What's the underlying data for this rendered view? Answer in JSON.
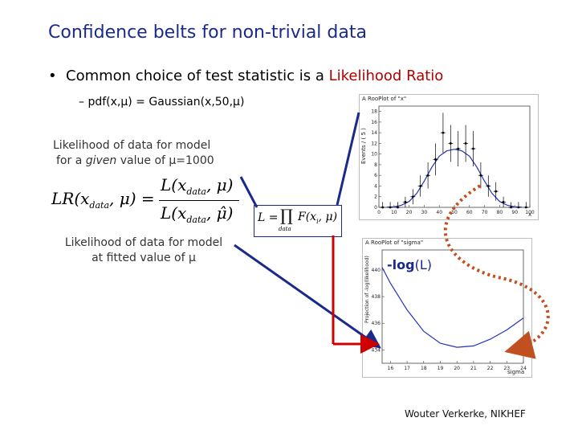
{
  "slide": {
    "title": "Confidence belts for non-trivial data",
    "bullet": {
      "prefix": "Common choice of test statistic is a ",
      "highlight": "Likelihood Ratio"
    },
    "sub_bullet": "– pdf(x,μ) = Gaussian(x,50,μ)",
    "note_given": {
      "line1": "Likelihood of data for model",
      "line2_pre": "for a ",
      "line2_em": "given",
      "line2_post": " value of μ=1000"
    },
    "note_fitted": {
      "line1": "Likelihood of data for model",
      "line2": "at fitted value of μ"
    },
    "nll_label": {
      "bold": "-log",
      "rest": "(L)"
    },
    "footer": "Wouter Verkerke, NIKHEF"
  },
  "formula_lr": {
    "lhs": "LR(x",
    "lhs_sub": "data",
    "lhs_tail": ", μ) =",
    "num": "L(x",
    "num_sub": "data",
    "num_tail": ", μ)",
    "den": "L(x",
    "den_sub": "data",
    "den_tail": ", μ̂)"
  },
  "formula_l": {
    "lhs": "L =",
    "prod": "∏",
    "prod_sub": "data",
    "body": "F(x",
    "body_sub": "i",
    "body_tail": ", μ)"
  },
  "colors": {
    "title": "#1a2a8c",
    "highlight": "#b00000",
    "arrow_blue": "#1a2a8c",
    "arrow_red": "#d00000",
    "arrow_dotted": "#c05020",
    "curve": "#2233bb"
  },
  "plot_top": {
    "title": "A RooPlot of \"x\"",
    "ylabel": "Events / ( 5 )",
    "y_ticks": [
      "18",
      "16",
      "14",
      "12",
      "10",
      "8",
      "6",
      "4",
      "2",
      "0"
    ],
    "x_ticks": [
      "0",
      "10",
      "20",
      "30",
      "40",
      "50",
      "60",
      "70",
      "80",
      "90",
      "100"
    ],
    "x_unit": "x"
  },
  "plot_bottom": {
    "title": "A RooPlot of \"sigma\"",
    "ylabel": "Projection of -log(likelihood)",
    "y_ticks": [
      "440",
      "438",
      "436",
      "434"
    ],
    "x_ticks": [
      "16",
      "17",
      "18",
      "19",
      "20",
      "21",
      "22",
      "23",
      "24"
    ],
    "x_unit": "sigma"
  },
  "chart_data": [
    {
      "type": "scatter",
      "title": "A RooPlot of \"x\"",
      "xlabel": "x",
      "ylabel": "Events / ( 5 )",
      "xlim": [
        0,
        100
      ],
      "ylim": [
        0,
        19
      ],
      "series": [
        {
          "x": [
            2.5,
            7.5,
            12.5,
            17.5,
            22.5,
            27.5,
            32.5,
            37.5,
            42.5,
            47.5,
            52.5,
            57.5,
            62.5,
            67.5,
            72.5,
            77.5,
            82.5,
            87.5,
            92.5,
            97.5
          ],
          "y": [
            0,
            0,
            0,
            1,
            2,
            4,
            6,
            9,
            14,
            12,
            11,
            12,
            11,
            6,
            4,
            3,
            1,
            0,
            0,
            0
          ]
        },
        {
          "x": [
            5,
            10,
            15,
            20,
            25,
            30,
            35,
            40,
            45,
            50,
            55,
            60,
            65,
            70,
            75,
            80,
            85,
            90,
            95
          ],
          "y": [
            0.02,
            0.1,
            0.4,
            1.1,
            2.6,
            4.9,
            7.5,
            9.6,
            10.6,
            10.9,
            10.6,
            9.6,
            7.5,
            4.9,
            2.6,
            1.1,
            0.4,
            0.1,
            0.02
          ]
        }
      ]
    },
    {
      "type": "line",
      "title": "A RooPlot of \"sigma\"",
      "xlabel": "sigma",
      "ylabel": "Projection of -log(likelihood)",
      "xlim": [
        15.5,
        24
      ],
      "ylim": [
        433,
        441.5
      ],
      "series": [
        {
          "x": [
            15.5,
            16,
            17,
            18,
            19,
            20,
            21,
            22,
            23,
            24
          ],
          "y": [
            440.2,
            439.0,
            437.0,
            435.4,
            434.5,
            434.2,
            434.3,
            434.8,
            435.5,
            436.4
          ]
        }
      ]
    }
  ]
}
